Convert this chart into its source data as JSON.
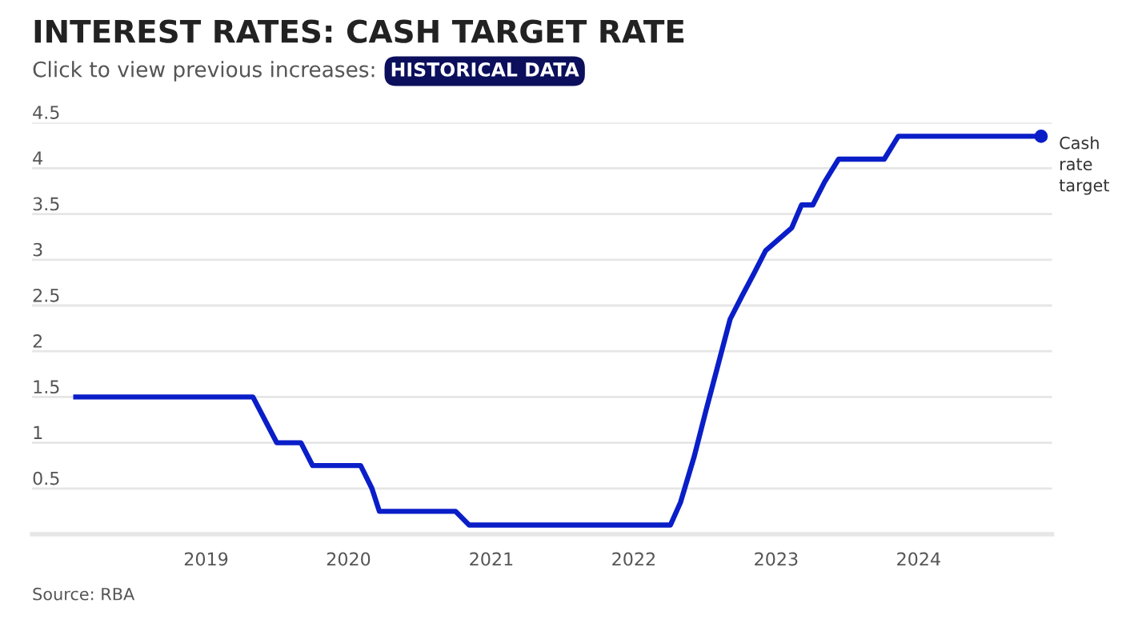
{
  "chart_data": {
    "type": "line",
    "title": "INTEREST RATES: CASH TARGET RATE",
    "subtitle": "Click to view previous increases:",
    "annotations": [
      "HISTORICAL DATA",
      "Source: RBA"
    ],
    "series": [
      {
        "name": "Cash rate target",
        "color": "#0a1ec8",
        "x": [
          "2018-02-01",
          "2019-05-01",
          "2019-07-01",
          "2019-09-01",
          "2019-10-01",
          "2020-02-01",
          "2020-03-01",
          "2020-03-20",
          "2020-10-01",
          "2020-11-05",
          "2022-04-05",
          "2022-05-01",
          "2022-06-05",
          "2022-07-05",
          "2022-08-05",
          "2022-09-05",
          "2022-10-05",
          "2022-11-05",
          "2022-12-05",
          "2023-02-10",
          "2023-03-07",
          "2023-04-05",
          "2023-05-05",
          "2023-06-10",
          "2023-10-05",
          "2023-11-10",
          "2024-11-10"
        ],
        "values": [
          1.5,
          1.5,
          1.0,
          1.0,
          0.75,
          0.75,
          0.5,
          0.25,
          0.25,
          0.1,
          0.1,
          0.35,
          0.85,
          1.35,
          1.85,
          2.35,
          2.6,
          2.85,
          3.1,
          3.35,
          3.6,
          3.6,
          3.85,
          4.1,
          4.1,
          4.35,
          4.35
        ]
      }
    ],
    "xlim": [
      "2017-10-12",
      "2024-12-08"
    ],
    "xticks": [
      {
        "value": "2019-01-01",
        "label": "2019"
      },
      {
        "value": "2020-01-01",
        "label": "2020"
      },
      {
        "value": "2021-01-01",
        "label": "2021"
      },
      {
        "value": "2022-01-01",
        "label": "2022"
      },
      {
        "value": "2023-01-01",
        "label": "2023"
      },
      {
        "value": "2024-01-01",
        "label": "2024"
      }
    ],
    "ylim": [
      0,
      4.5
    ],
    "yticks": [
      {
        "value": 0,
        "label": null
      },
      0.5,
      1,
      1.5,
      2,
      2.5,
      3,
      3.5,
      4,
      4.5
    ],
    "grid": "y",
    "legend": false,
    "line_style": "solid"
  }
}
